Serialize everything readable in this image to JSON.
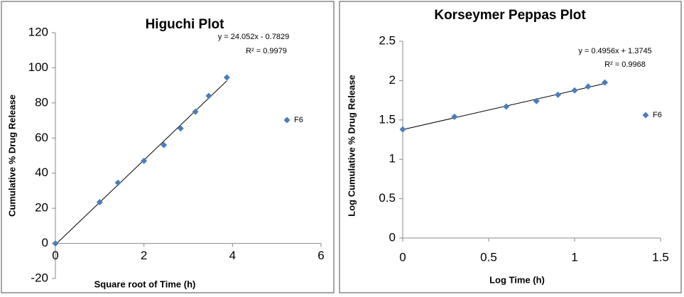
{
  "chart_data": [
    {
      "type": "scatter",
      "title": "Higuchi Plot",
      "x_label": "Square root of Time (h)",
      "y_label": "Cumulative % Drug Release",
      "series": [
        {
          "name": "F6",
          "color": "#4a7ebb",
          "x": [
            0,
            1,
            1.414,
            2,
            2.449,
            2.828,
            3.162,
            3.464,
            3.873
          ],
          "values": [
            0,
            23.5,
            34.5,
            47,
            56,
            65.5,
            75,
            84,
            94.5
          ]
        }
      ],
      "annotations": [
        "y = 24.052x  - 0.7829",
        "R² = 0.9979"
      ],
      "xlim": [
        0,
        6
      ],
      "xticks": [
        0,
        2,
        4,
        6
      ],
      "ylim": [
        -20,
        120
      ],
      "yticks": [
        -20,
        0,
        20,
        40,
        60,
        80,
        100,
        120
      ],
      "trendline": true
    },
    {
      "type": "scatter",
      "title": "Korseymer Peppas Plot",
      "x_label": "Log Time (h)",
      "y_label": "Log Cumulative % Drug Release",
      "series": [
        {
          "name": "F6",
          "color": "#4a7ebb",
          "x": [
            0,
            0.301,
            0.602,
            0.778,
            0.903,
            1,
            1.079,
            1.176
          ],
          "values": [
            1.38,
            1.54,
            1.67,
            1.74,
            1.82,
            1.875,
            1.925,
            1.975
          ]
        }
      ],
      "annotations": [
        "y = 0.4956x  + 1.3745",
        "R² = 0.9968"
      ],
      "xlim": [
        0,
        1.5
      ],
      "xticks": [
        0,
        0.5,
        1,
        1.5
      ],
      "ylim": [
        0,
        2.5
      ],
      "yticks": [
        0,
        0.5,
        1,
        1.5,
        2,
        2.5
      ],
      "trendline": true
    }
  ]
}
